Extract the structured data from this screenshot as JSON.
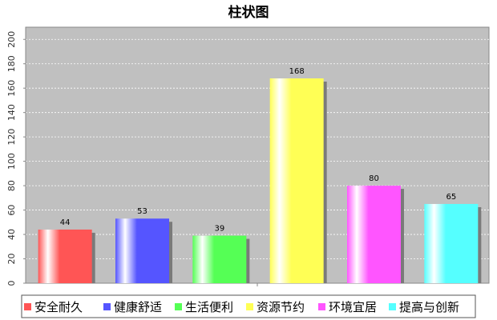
{
  "chart_data": {
    "type": "bar",
    "title": "柱状图",
    "xlabel": "",
    "ylabel": "",
    "ylim": [
      0,
      210
    ],
    "yticks": [
      0,
      20,
      40,
      60,
      80,
      100,
      120,
      140,
      160,
      180,
      200
    ],
    "grid": true,
    "legend_position": "bottom",
    "categories": [
      "安全耐久",
      "健康舒适",
      "生活便利",
      "资源节约",
      "环境宜居",
      "提高与创新"
    ],
    "values": [
      44,
      53,
      39,
      168,
      80,
      65
    ],
    "colors": [
      "#ff5555",
      "#5555ff",
      "#55ff55",
      "#ffff55",
      "#ff55ff",
      "#55ffff"
    ],
    "plot_background": "#c0c0c0"
  }
}
